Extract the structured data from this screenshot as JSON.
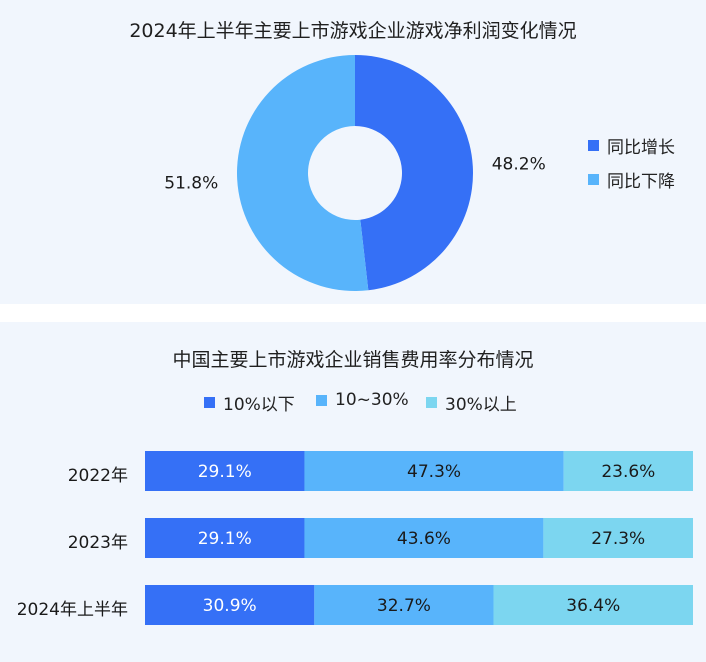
{
  "chart_data": [
    {
      "type": "pie",
      "title": "2024年上半年主要上市游戏企业游戏净利润变化情况",
      "legend_position": "right",
      "slices": [
        {
          "name": "同比增长",
          "value": 48.2,
          "label": "48.2%",
          "color": "#3570f6"
        },
        {
          "name": "同比下降",
          "value": 51.8,
          "label": "51.8%",
          "color": "#58b4fb"
        }
      ]
    },
    {
      "type": "bar",
      "orientation": "horizontal",
      "stacked": true,
      "title": "中国主要上市游戏企业销售费用率分布情况",
      "legend_position": "top",
      "categories": [
        "2022年",
        "2023年",
        "2024年上半年"
      ],
      "series": [
        {
          "name": "10%以下",
          "color": "#3570f6",
          "values": [
            29.1,
            29.1,
            30.9
          ],
          "labels": [
            "29.1%",
            "29.1%",
            "30.9%"
          ]
        },
        {
          "name": "10~30%",
          "color": "#58b4fb",
          "values": [
            47.3,
            43.6,
            32.7
          ],
          "labels": [
            "47.3%",
            "43.6%",
            "32.7%"
          ]
        },
        {
          "name": "30%以上",
          "color": "#7cd6f0",
          "values": [
            23.6,
            27.3,
            36.4
          ],
          "labels": [
            "23.6%",
            "27.3%",
            "36.4%"
          ]
        }
      ]
    }
  ]
}
